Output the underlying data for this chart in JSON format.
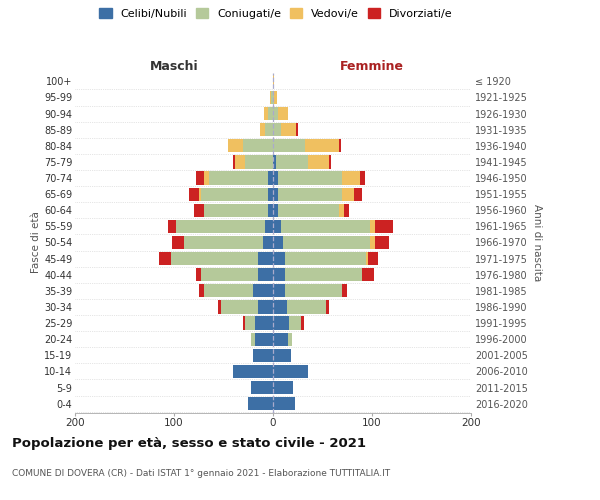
{
  "age_groups": [
    "0-4",
    "5-9",
    "10-14",
    "15-19",
    "20-24",
    "25-29",
    "30-34",
    "35-39",
    "40-44",
    "45-49",
    "50-54",
    "55-59",
    "60-64",
    "65-69",
    "70-74",
    "75-79",
    "80-84",
    "85-89",
    "90-94",
    "95-99",
    "100+"
  ],
  "birth_years": [
    "2016-2020",
    "2011-2015",
    "2006-2010",
    "2001-2005",
    "1996-2000",
    "1991-1995",
    "1986-1990",
    "1981-1985",
    "1976-1980",
    "1971-1975",
    "1966-1970",
    "1961-1965",
    "1956-1960",
    "1951-1955",
    "1946-1950",
    "1941-1945",
    "1936-1940",
    "1931-1935",
    "1926-1930",
    "1921-1925",
    "≤ 1920"
  ],
  "males": {
    "celibi": [
      25,
      22,
      40,
      20,
      18,
      18,
      15,
      20,
      15,
      15,
      10,
      8,
      5,
      5,
      5,
      0,
      0,
      0,
      0,
      0,
      0
    ],
    "coniugati": [
      0,
      0,
      0,
      0,
      4,
      10,
      38,
      50,
      58,
      88,
      80,
      90,
      65,
      68,
      60,
      28,
      30,
      8,
      5,
      2,
      0
    ],
    "vedovi": [
      0,
      0,
      0,
      0,
      0,
      0,
      0,
      0,
      0,
      0,
      0,
      0,
      0,
      2,
      5,
      10,
      15,
      5,
      4,
      1,
      0
    ],
    "divorziati": [
      0,
      0,
      0,
      0,
      0,
      2,
      3,
      5,
      5,
      12,
      12,
      8,
      10,
      10,
      8,
      2,
      0,
      0,
      0,
      0,
      0
    ]
  },
  "females": {
    "nubili": [
      22,
      20,
      35,
      18,
      15,
      16,
      14,
      12,
      12,
      12,
      10,
      8,
      5,
      5,
      5,
      3,
      0,
      0,
      0,
      0,
      0
    ],
    "coniugate": [
      0,
      0,
      0,
      0,
      4,
      12,
      40,
      58,
      78,
      82,
      88,
      90,
      62,
      65,
      65,
      32,
      32,
      8,
      5,
      1,
      0
    ],
    "vedove": [
      0,
      0,
      0,
      0,
      0,
      0,
      0,
      0,
      0,
      2,
      5,
      5,
      5,
      12,
      18,
      22,
      35,
      15,
      10,
      3,
      1
    ],
    "divorziate": [
      0,
      0,
      0,
      0,
      0,
      3,
      3,
      5,
      12,
      10,
      14,
      18,
      5,
      8,
      5,
      2,
      2,
      2,
      0,
      0,
      0
    ]
  },
  "colors": {
    "celibi": "#3d6fa5",
    "coniugati": "#b5c99a",
    "vedovi": "#f0c060",
    "divorziati": "#cc2222"
  },
  "xlim": 200,
  "title": "Popolazione per età, sesso e stato civile - 2021",
  "subtitle": "COMUNE DI DOVERA (CR) - Dati ISTAT 1° gennaio 2021 - Elaborazione TUTTITALIA.IT",
  "ylabel_left": "Fasce di età",
  "ylabel_right": "Anni di nascita",
  "xlabel_left": "Maschi",
  "xlabel_right": "Femmine",
  "legend_labels": [
    "Celibi/Nubili",
    "Coniugati/e",
    "Vedovi/e",
    "Divorziati/e"
  ]
}
